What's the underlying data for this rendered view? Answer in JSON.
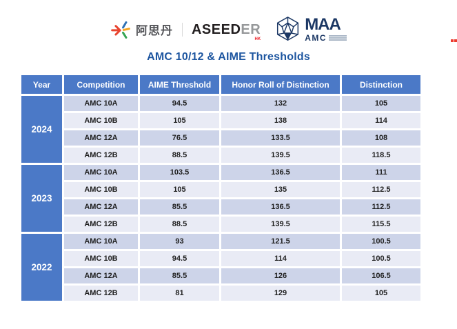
{
  "logos": {
    "asdan_cn": "阿思丹",
    "aseeder_main": "ASEED",
    "aseeder_suffix": "ER",
    "aseeder_region": "HK",
    "maa_name": "MAA",
    "amc_name": "AMC"
  },
  "title": "AMC 10/12 & AIME Thresholds",
  "colors": {
    "header_blue": "#4B79C7",
    "band_dark": "#CDD4E9",
    "band_light": "#E9EBF5",
    "title_blue": "#1E56A0",
    "maa_navy": "#1B3764"
  },
  "table": {
    "headers": [
      "Year",
      "Competition",
      "AIME Threshold",
      "Honor Roll of Distinction",
      "Distinction"
    ],
    "groups": [
      {
        "year": "2024",
        "rows": [
          {
            "competition": "AMC 10A",
            "aime": "94.5",
            "honor": "132",
            "distinction": "105"
          },
          {
            "competition": "AMC 10B",
            "aime": "105",
            "honor": "138",
            "distinction": "114"
          },
          {
            "competition": "AMC 12A",
            "aime": "76.5",
            "honor": "133.5",
            "distinction": "108"
          },
          {
            "competition": "AMC 12B",
            "aime": "88.5",
            "honor": "139.5",
            "distinction": "118.5"
          }
        ]
      },
      {
        "year": "2023",
        "rows": [
          {
            "competition": "AMC 10A",
            "aime": "103.5",
            "honor": "136.5",
            "distinction": "111"
          },
          {
            "competition": "AMC 10B",
            "aime": "105",
            "honor": "135",
            "distinction": "112.5"
          },
          {
            "competition": "AMC 12A",
            "aime": "85.5",
            "honor": "136.5",
            "distinction": "112.5"
          },
          {
            "competition": "AMC 12B",
            "aime": "88.5",
            "honor": "139.5",
            "distinction": "115.5"
          }
        ]
      },
      {
        "year": "2022",
        "rows": [
          {
            "competition": "AMC 10A",
            "aime": "93",
            "honor": "121.5",
            "distinction": "100.5"
          },
          {
            "competition": "AMC 10B",
            "aime": "94.5",
            "honor": "114",
            "distinction": "100.5"
          },
          {
            "competition": "AMC 12A",
            "aime": "85.5",
            "honor": "126",
            "distinction": "106.5"
          },
          {
            "competition": "AMC 12B",
            "aime": "81",
            "honor": "129",
            "distinction": "105"
          }
        ]
      }
    ]
  }
}
